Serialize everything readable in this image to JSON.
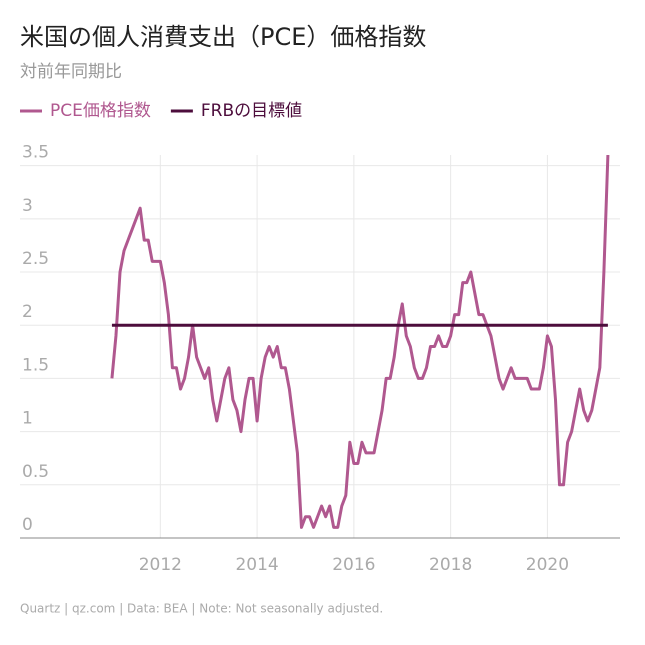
{
  "chart_data": {
    "type": "line",
    "title": "米国の個人消費支出（PCE）価格指数",
    "subtitle": "対前年同期比",
    "source": "Quartz | qz.com | Data: BEA | Note: Not seasonally adjusted.",
    "xlim": [
      2009.1,
      2021.5
    ],
    "xticks": [
      2012,
      2014,
      2016,
      2018,
      2020
    ],
    "ylim": [
      0,
      3.6
    ],
    "yticks": [
      0,
      0.5,
      1,
      1.5,
      2,
      2.5,
      3,
      3.5
    ],
    "grid": true,
    "legend": "top-left",
    "series": [
      {
        "name": "PCE価格指数",
        "color": "#b0588f",
        "x": [
          2011,
          2011.083,
          2011.167,
          2011.25,
          2011.333,
          2011.417,
          2011.5,
          2011.583,
          2011.667,
          2011.75,
          2011.833,
          2011.917,
          2012,
          2012.083,
          2012.167,
          2012.25,
          2012.333,
          2012.417,
          2012.5,
          2012.583,
          2012.667,
          2012.75,
          2012.833,
          2012.917,
          2013,
          2013.083,
          2013.167,
          2013.25,
          2013.333,
          2013.417,
          2013.5,
          2013.583,
          2013.667,
          2013.75,
          2013.833,
          2013.917,
          2014,
          2014.083,
          2014.167,
          2014.25,
          2014.333,
          2014.417,
          2014.5,
          2014.583,
          2014.667,
          2014.75,
          2014.833,
          2014.917,
          2015,
          2015.083,
          2015.167,
          2015.25,
          2015.333,
          2015.417,
          2015.5,
          2015.583,
          2015.667,
          2015.75,
          2015.833,
          2015.917,
          2016,
          2016.083,
          2016.167,
          2016.25,
          2016.333,
          2016.417,
          2016.5,
          2016.583,
          2016.667,
          2016.75,
          2016.833,
          2016.917,
          2017,
          2017.083,
          2017.167,
          2017.25,
          2017.333,
          2017.417,
          2017.5,
          2017.583,
          2017.667,
          2017.75,
          2017.833,
          2017.917,
          2018,
          2018.083,
          2018.167,
          2018.25,
          2018.333,
          2018.417,
          2018.5,
          2018.583,
          2018.667,
          2018.75,
          2018.833,
          2018.917,
          2019,
          2019.083,
          2019.167,
          2019.25,
          2019.333,
          2019.417,
          2019.5,
          2019.583,
          2019.667,
          2019.75,
          2019.833,
          2019.917,
          2020,
          2020.083,
          2020.167,
          2020.25,
          2020.333,
          2020.417,
          2020.5,
          2020.583,
          2020.667,
          2020.75,
          2020.833,
          2020.917,
          2021,
          2021.083,
          2021.167,
          2021.25
        ],
        "values": [
          1.5,
          1.9,
          2.5,
          2.7,
          2.8,
          2.9,
          3.0,
          3.1,
          2.8,
          2.8,
          2.6,
          2.6,
          2.6,
          2.4,
          2.1,
          1.6,
          1.6,
          1.4,
          1.5,
          1.7,
          2.0,
          1.7,
          1.6,
          1.5,
          1.6,
          1.3,
          1.1,
          1.3,
          1.5,
          1.6,
          1.3,
          1.2,
          1.0,
          1.3,
          1.5,
          1.5,
          1.1,
          1.5,
          1.7,
          1.8,
          1.7,
          1.8,
          1.6,
          1.6,
          1.4,
          1.1,
          0.8,
          0.1,
          0.2,
          0.2,
          0.1,
          0.2,
          0.3,
          0.2,
          0.3,
          0.1,
          0.1,
          0.3,
          0.4,
          0.9,
          0.7,
          0.7,
          0.9,
          0.8,
          0.8,
          0.8,
          1.0,
          1.2,
          1.5,
          1.5,
          1.7,
          2.0,
          2.2,
          1.9,
          1.8,
          1.6,
          1.5,
          1.5,
          1.6,
          1.8,
          1.8,
          1.9,
          1.8,
          1.8,
          1.9,
          2.1,
          2.1,
          2.4,
          2.4,
          2.5,
          2.3,
          2.1,
          2.1,
          2.0,
          1.9,
          1.7,
          1.5,
          1.4,
          1.5,
          1.6,
          1.5,
          1.5,
          1.5,
          1.5,
          1.4,
          1.4,
          1.4,
          1.6,
          1.9,
          1.8,
          1.3,
          0.5,
          0.5,
          0.9,
          1.0,
          1.2,
          1.4,
          1.2,
          1.1,
          1.2,
          1.4,
          1.6,
          2.5,
          3.6
        ]
      },
      {
        "name": "FRBの目標値",
        "color": "#4d0d3c",
        "x": [
          2011,
          2021.25
        ],
        "values": [
          2,
          2
        ]
      }
    ]
  }
}
